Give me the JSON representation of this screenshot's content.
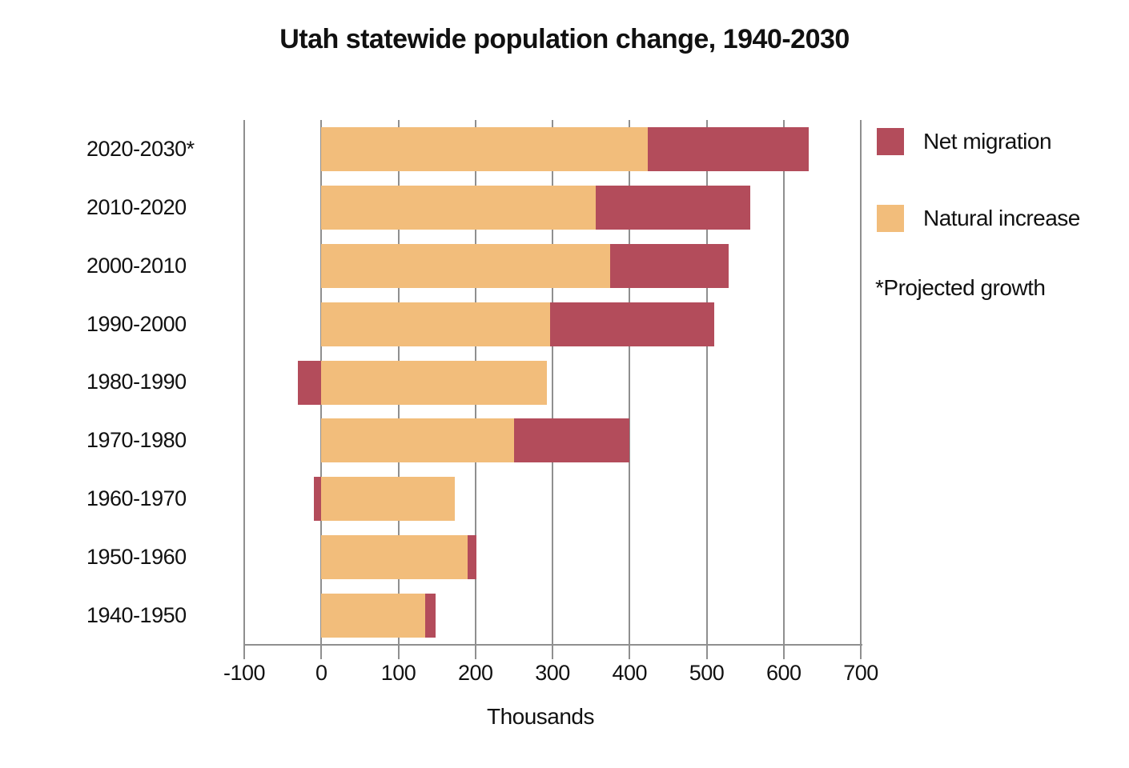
{
  "title": "Utah statewide population change, 1940-2030",
  "note": "*Projected growth",
  "x_axis": {
    "title": "Thousands",
    "ticks": [
      {
        "value": -100,
        "label": "-100"
      },
      {
        "value": 0,
        "label": "0"
      },
      {
        "value": 100,
        "label": "100"
      },
      {
        "value": 200,
        "label": "200"
      },
      {
        "value": 300,
        "label": "300"
      },
      {
        "value": 400,
        "label": "400"
      },
      {
        "value": 500,
        "label": "500"
      },
      {
        "value": 600,
        "label": "600"
      },
      {
        "value": 700,
        "label": "700"
      }
    ]
  },
  "legend": {
    "items": [
      {
        "label": "Net migration",
        "color": "#b34c5b"
      },
      {
        "label": "Natural increase",
        "color": "#f2bd7b"
      }
    ]
  },
  "colors": {
    "net_migration": "#b34c5b",
    "natural_increase": "#f2bd7b",
    "gridline": "#8f8f8f",
    "text": "#111111"
  },
  "chart_data": {
    "type": "bar",
    "orientation": "horizontal",
    "stacked": true,
    "title": "Utah statewide population change, 1940-2030",
    "xlabel": "Thousands",
    "ylabel": "",
    "xlim": [
      -100,
      700
    ],
    "grid": true,
    "legend_position": "right",
    "units": "thousands",
    "categories": [
      "2020-2030*",
      "2010-2020",
      "2000-2010",
      "1990-2000",
      "1980-1990",
      "1970-1980",
      "1960-1970",
      "1950-1960",
      "1940-1950"
    ],
    "series": [
      {
        "name": "Natural increase",
        "color": "#f2bd7b",
        "values": [
          424,
          356,
          375,
          297,
          293,
          250,
          173,
          190,
          135
        ]
      },
      {
        "name": "Net migration",
        "color": "#b34c5b",
        "values": [
          208,
          201,
          154,
          213,
          -30,
          150,
          -10,
          11,
          13
        ]
      }
    ],
    "totals": [
      632,
      557,
      529,
      510,
      263,
      400,
      163,
      201,
      148
    ],
    "footnote": "*Projected growth"
  }
}
